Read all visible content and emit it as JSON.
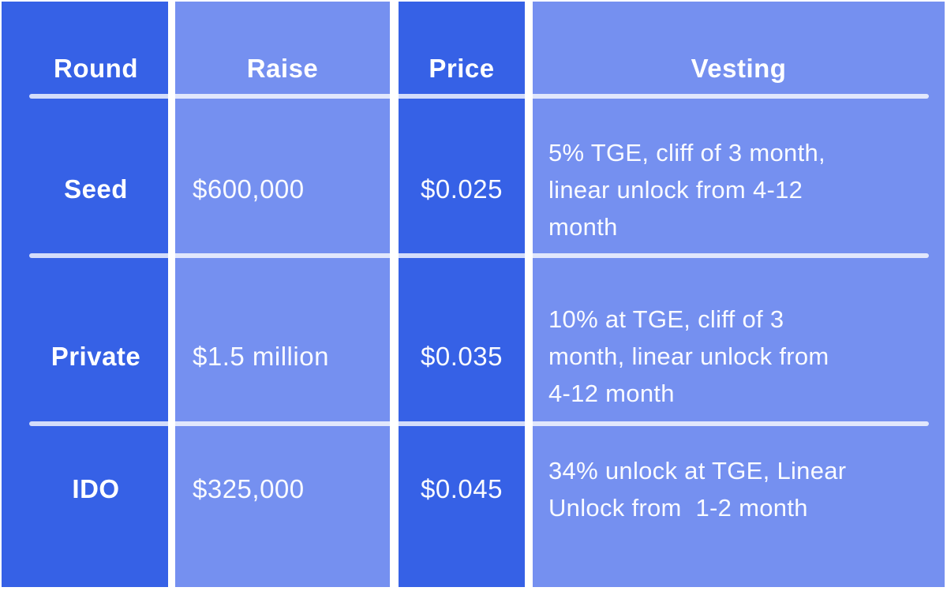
{
  "table": {
    "columns": [
      {
        "key": "round",
        "header": "Round",
        "tone": "dark"
      },
      {
        "key": "raise",
        "header": "Raise",
        "tone": "light"
      },
      {
        "key": "price",
        "header": "Price",
        "tone": "dark"
      },
      {
        "key": "vesting",
        "header": "Vesting",
        "tone": "light"
      }
    ],
    "rows": [
      {
        "round": "Seed",
        "raise": "$600,000",
        "price": "$0.025",
        "vesting": "5% TGE, cliff of 3 month,\nlinear unlock from 4-12\nmonth"
      },
      {
        "round": "Private",
        "raise": "$1.5 million",
        "price": "$0.035",
        "vesting": "10% at TGE, cliff of 3\nmonth, linear unlock from\n4-12 month"
      },
      {
        "round": "IDO",
        "raise": "$325,000",
        "price": "$0.045",
        "vesting": "34% unlock at TGE, Linear\nUnlock from  1-2 month"
      }
    ],
    "colors": {
      "dark": "#3661E6",
      "light": "#7590F0",
      "divider": "rgba(255,255,255,0.78)",
      "text": "#ffffff",
      "text_soft": "#fafbff",
      "background": "#ffffff"
    }
  }
}
